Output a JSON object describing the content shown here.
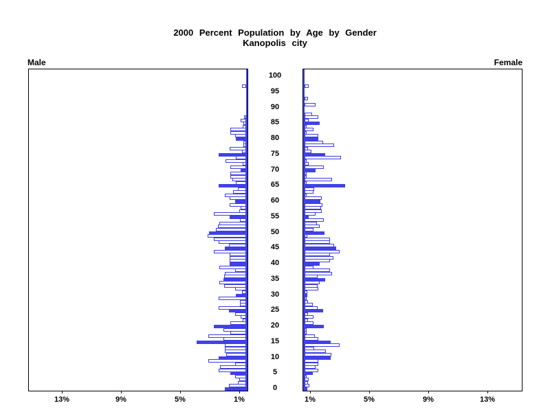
{
  "title": {
    "line1": "2000 Percent Population by Age by Gender",
    "line2": "Kanopolis city"
  },
  "panel_labels": {
    "left": "Male",
    "right": "Female"
  },
  "colors": {
    "bar_fill": "#4141e8",
    "bar_outline": "#3b3be0",
    "axis_line": "#000000",
    "background": "#ffffff"
  },
  "axis": {
    "unit": "percent of population",
    "max_pct": 15,
    "tick_values": [
      13,
      9,
      5,
      1
    ],
    "male_tick_labels": [
      "13%",
      "9%",
      "5%",
      "1%"
    ],
    "female_tick_labels": [
      "1%",
      "5%",
      "9%",
      "13%"
    ],
    "age_labels": [
      0,
      5,
      10,
      15,
      20,
      25,
      30,
      35,
      40,
      45,
      50,
      55,
      60,
      65,
      70,
      75,
      80,
      85,
      90,
      95,
      100
    ]
  },
  "chart_data": {
    "type": "bar",
    "subtype": "population-pyramid",
    "title": "2000 Percent Population by Age by Gender",
    "subtitle": "Kanopolis city",
    "orientation": "horizontal, male left / female right",
    "ages": "single years 0 through 100",
    "highlight_rule": "bars for ages divisible by 5 are solid blue; all other ages are white with blue outline",
    "white_exceptions": {
      "male": [
        85
      ],
      "female": []
    },
    "xlim_each_side": [
      0,
      15
    ],
    "series": [
      {
        "name": "Male",
        "values": [
          1.9,
          1.6,
          1.0,
          0.9,
          1.2,
          1.5,
          2.3,
          2.2,
          1.2,
          3.0,
          2.3,
          1.8,
          1.9,
          1.9,
          1.9,
          3.8,
          2.0,
          3.0,
          1.5,
          2.0,
          2.65,
          1.5,
          0.7,
          0.8,
          1.2,
          1.6,
          2.3,
          0.85,
          0.85,
          2.3,
          1.15,
          0.75,
          1.2,
          1.95,
          2.25,
          2.0,
          1.95,
          1.9,
          1.2,
          2.25,
          1.55,
          1.55,
          1.55,
          1.55,
          2.65,
          1.9,
          1.6,
          2.3,
          2.65,
          3.05,
          2.95,
          2.5,
          2.35,
          2.25,
          0.85,
          1.55,
          2.65,
          0.9,
          0.8,
          1.55,
          1.2,
          1.55,
          1.9,
          1.35,
          1.0,
          2.3,
          1.15,
          1.4,
          1.5,
          1.5,
          0.8,
          1.5,
          0.7,
          1.85,
          1.15,
          2.3,
          0.75,
          1.55,
          0.65,
          0.65,
          1.15,
          1.2,
          1.5,
          1.5,
          0.7,
          0.65,
          0.8,
          0.6,
          0,
          0,
          0,
          0,
          0,
          0,
          0,
          0,
          0,
          0.75,
          0,
          0,
          0
        ]
      },
      {
        "name": "Female",
        "values": [
          0.65,
          0.76,
          0.68,
          0.71,
          0.6,
          1.0,
          1.4,
          1.2,
          1.4,
          1.4,
          2.2,
          2.25,
          1.9,
          1.1,
          2.8,
          2.2,
          1.4,
          1.15,
          0.6,
          0.6,
          1.75,
          1.05,
          0.7,
          1.05,
          0.7,
          1.7,
          1.35,
          1.0,
          0.7,
          0.6,
          0.65,
          0.65,
          1.4,
          1.35,
          1.45,
          1.85,
          1.35,
          2.3,
          2.15,
          1.05,
          1.45,
          2.15,
          2.4,
          2.15,
          2.8,
          2.6,
          2.45,
          2.15,
          2.15,
          0.65,
          1.8,
          1.05,
          1.45,
          1.3,
          1.75,
          0.75,
          1.2,
          1.6,
          1.55,
          1.65,
          1.5,
          1.6,
          0.6,
          1.05,
          1.1,
          3.2,
          0.6,
          2.3,
          0.6,
          0.6,
          1.2,
          1.75,
          0.75,
          0.6,
          2.9,
          1.85,
          0.9,
          0.7,
          2.45,
          1.7,
          1.4,
          1.4,
          0.6,
          1.05,
          0.6,
          1.45,
          0.75,
          1.4,
          0.95,
          0,
          0,
          1.2,
          0,
          0.7,
          0,
          0,
          0,
          0.75,
          0,
          0,
          0
        ]
      }
    ]
  }
}
